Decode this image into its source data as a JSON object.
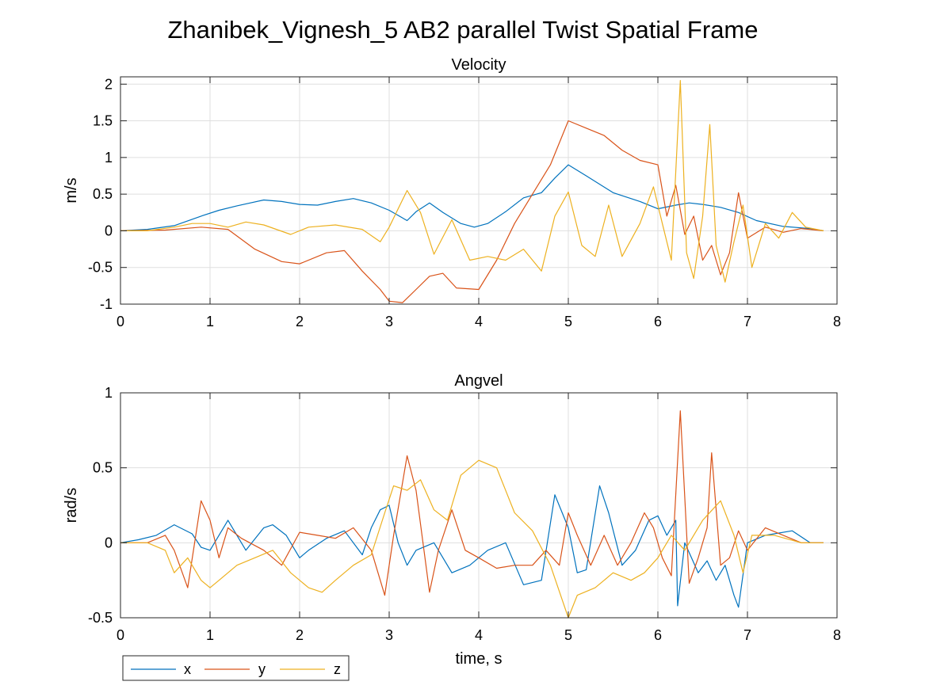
{
  "figure_title": "Zhanibek_Vignesh_5 AB2 parallel Twist Spatial Frame",
  "legend": {
    "placement": "bottom-left",
    "entries": [
      {
        "label": "x",
        "color": "#0072BD"
      },
      {
        "label": "y",
        "color": "#D95319"
      },
      {
        "label": "z",
        "color": "#EDB120"
      }
    ]
  },
  "chart_data": [
    {
      "type": "line",
      "title": "Velocity",
      "xlabel": "",
      "ylabel": "m/s",
      "xlim": [
        0,
        8
      ],
      "ylim": [
        -1,
        2.1
      ],
      "xticks": [
        "0",
        "1",
        "2",
        "3",
        "4",
        "5",
        "6",
        "7",
        "8"
      ],
      "yticks": [
        "-1",
        "-0.5",
        "0",
        "0.5",
        "1",
        "1.5",
        "2"
      ],
      "grid": true,
      "series": [
        {
          "name": "x",
          "color": "#0072BD",
          "x": [
            0,
            0.3,
            0.6,
            0.9,
            1.1,
            1.3,
            1.6,
            1.8,
            2.0,
            2.2,
            2.4,
            2.6,
            2.8,
            3.0,
            3.2,
            3.3,
            3.45,
            3.6,
            3.8,
            3.95,
            4.1,
            4.3,
            4.5,
            4.7,
            4.85,
            5.0,
            5.2,
            5.5,
            5.8,
            6.0,
            6.2,
            6.35,
            6.5,
            6.7,
            6.9,
            7.1,
            7.4,
            7.7,
            7.85
          ],
          "y": [
            0,
            0.02,
            0.07,
            0.2,
            0.28,
            0.34,
            0.42,
            0.4,
            0.36,
            0.35,
            0.4,
            0.44,
            0.38,
            0.28,
            0.14,
            0.26,
            0.38,
            0.25,
            0.1,
            0.05,
            0.1,
            0.26,
            0.45,
            0.52,
            0.72,
            0.9,
            0.75,
            0.52,
            0.4,
            0.3,
            0.35,
            0.38,
            0.36,
            0.32,
            0.25,
            0.14,
            0.06,
            0.03,
            0
          ]
        },
        {
          "name": "y",
          "color": "#D95319",
          "x": [
            0,
            0.5,
            0.9,
            1.2,
            1.5,
            1.8,
            2.0,
            2.3,
            2.5,
            2.7,
            2.9,
            3.0,
            3.15,
            3.3,
            3.45,
            3.6,
            3.75,
            4.0,
            4.2,
            4.4,
            4.6,
            4.8,
            5.0,
            5.2,
            5.4,
            5.6,
            5.8,
            6.0,
            6.1,
            6.2,
            6.3,
            6.4,
            6.5,
            6.6,
            6.7,
            6.8,
            6.9,
            7.0,
            7.2,
            7.4,
            7.6,
            7.85
          ],
          "y": [
            0,
            0.01,
            0.05,
            0.02,
            -0.25,
            -0.42,
            -0.45,
            -0.3,
            -0.27,
            -0.55,
            -0.8,
            -0.96,
            -0.98,
            -0.8,
            -0.62,
            -0.58,
            -0.78,
            -0.8,
            -0.4,
            0.1,
            0.5,
            0.9,
            1.5,
            1.4,
            1.3,
            1.1,
            0.96,
            0.9,
            0.2,
            0.62,
            -0.05,
            0.2,
            -0.4,
            -0.2,
            -0.6,
            -0.3,
            0.52,
            -0.1,
            0.05,
            -0.02,
            0.03,
            0
          ]
        },
        {
          "name": "z",
          "color": "#EDB120",
          "x": [
            0,
            0.3,
            0.6,
            0.8,
            1.0,
            1.2,
            1.4,
            1.6,
            1.9,
            2.1,
            2.4,
            2.7,
            2.9,
            3.0,
            3.2,
            3.35,
            3.5,
            3.7,
            3.9,
            4.1,
            4.3,
            4.5,
            4.7,
            4.85,
            5.0,
            5.15,
            5.3,
            5.45,
            5.6,
            5.8,
            5.95,
            6.05,
            6.15,
            6.25,
            6.32,
            6.4,
            6.5,
            6.58,
            6.65,
            6.75,
            6.85,
            6.95,
            7.05,
            7.2,
            7.35,
            7.5,
            7.65,
            7.85
          ],
          "y": [
            0,
            0.0,
            0.05,
            0.1,
            0.1,
            0.05,
            0.12,
            0.08,
            -0.05,
            0.05,
            0.08,
            0.02,
            -0.15,
            0.05,
            0.55,
            0.25,
            -0.32,
            0.15,
            -0.4,
            -0.35,
            -0.4,
            -0.25,
            -0.55,
            0.2,
            0.53,
            -0.2,
            -0.35,
            0.35,
            -0.35,
            0.1,
            0.6,
            0.1,
            -0.4,
            2.05,
            -0.3,
            -0.65,
            0.2,
            1.45,
            -0.2,
            -0.7,
            -0.15,
            0.35,
            -0.5,
            0.1,
            -0.1,
            0.25,
            0.05,
            0
          ]
        }
      ]
    },
    {
      "type": "line",
      "title": "Angvel",
      "xlabel": "time, s",
      "ylabel": "rad/s",
      "xlim": [
        0,
        8
      ],
      "ylim": [
        -0.5,
        1
      ],
      "xticks": [
        "0",
        "1",
        "2",
        "3",
        "4",
        "5",
        "6",
        "7",
        "8"
      ],
      "yticks": [
        "-0.5",
        "0",
        "0.5",
        "1"
      ],
      "grid": true,
      "series": [
        {
          "name": "x",
          "color": "#0072BD",
          "x": [
            0,
            0.2,
            0.4,
            0.6,
            0.8,
            0.9,
            1.0,
            1.2,
            1.4,
            1.6,
            1.7,
            1.85,
            2.0,
            2.1,
            2.3,
            2.5,
            2.7,
            2.8,
            2.9,
            3.0,
            3.1,
            3.2,
            3.3,
            3.5,
            3.7,
            3.9,
            4.1,
            4.3,
            4.5,
            4.7,
            4.85,
            5.0,
            5.1,
            5.2,
            5.35,
            5.45,
            5.6,
            5.75,
            5.9,
            6.0,
            6.1,
            6.2,
            6.22,
            6.3,
            6.45,
            6.55,
            6.65,
            6.75,
            6.85,
            6.9,
            7.0,
            7.2,
            7.5,
            7.7,
            7.85
          ],
          "y": [
            0,
            0.02,
            0.05,
            0.12,
            0.06,
            -0.03,
            -0.05,
            0.15,
            -0.05,
            0.1,
            0.12,
            0.05,
            -0.1,
            -0.05,
            0.03,
            0.08,
            -0.08,
            0.1,
            0.22,
            0.25,
            0.0,
            -0.15,
            -0.05,
            0.0,
            -0.2,
            -0.15,
            -0.05,
            0.0,
            -0.28,
            -0.25,
            0.32,
            0.1,
            -0.2,
            -0.18,
            0.38,
            0.2,
            -0.15,
            -0.05,
            0.15,
            0.18,
            0.05,
            0.15,
            -0.42,
            0.0,
            -0.2,
            -0.12,
            -0.25,
            -0.15,
            -0.35,
            -0.43,
            0.0,
            0.05,
            0.08,
            0.0,
            0
          ]
        },
        {
          "name": "y",
          "color": "#D95319",
          "x": [
            0,
            0.3,
            0.5,
            0.6,
            0.75,
            0.9,
            1.0,
            1.1,
            1.2,
            1.35,
            1.6,
            1.8,
            2.0,
            2.2,
            2.4,
            2.6,
            2.8,
            2.95,
            3.05,
            3.2,
            3.3,
            3.45,
            3.55,
            3.7,
            3.85,
            4.0,
            4.2,
            4.4,
            4.6,
            4.75,
            4.9,
            5.0,
            5.1,
            5.25,
            5.4,
            5.55,
            5.7,
            5.85,
            5.95,
            6.05,
            6.15,
            6.25,
            6.35,
            6.45,
            6.55,
            6.6,
            6.7,
            6.8,
            6.9,
            7.0,
            7.2,
            7.4,
            7.6,
            7.85
          ],
          "y": [
            0,
            0.0,
            0.05,
            -0.05,
            -0.3,
            0.28,
            0.15,
            -0.1,
            0.1,
            0.03,
            -0.05,
            -0.15,
            0.07,
            0.05,
            0.03,
            0.1,
            -0.05,
            -0.35,
            0.05,
            0.58,
            0.35,
            -0.33,
            -0.05,
            0.22,
            -0.05,
            -0.1,
            -0.17,
            -0.15,
            -0.15,
            -0.05,
            -0.15,
            0.2,
            0.05,
            -0.15,
            0.05,
            -0.15,
            0.0,
            0.2,
            0.1,
            -0.1,
            -0.22,
            0.88,
            -0.27,
            -0.1,
            0.1,
            0.6,
            -0.15,
            -0.1,
            0.08,
            -0.05,
            0.1,
            0.05,
            0.0,
            0
          ]
        },
        {
          "name": "z",
          "color": "#EDB120",
          "x": [
            0,
            0.3,
            0.5,
            0.6,
            0.75,
            0.9,
            1.0,
            1.1,
            1.3,
            1.5,
            1.7,
            1.9,
            2.1,
            2.25,
            2.4,
            2.6,
            2.8,
            2.95,
            3.05,
            3.2,
            3.35,
            3.5,
            3.65,
            3.8,
            4.0,
            4.2,
            4.4,
            4.6,
            4.8,
            5.0,
            5.1,
            5.3,
            5.5,
            5.7,
            5.85,
            6.0,
            6.15,
            6.3,
            6.5,
            6.7,
            6.85,
            6.95,
            7.05,
            7.3,
            7.6,
            7.85
          ],
          "y": [
            0,
            0.0,
            -0.05,
            -0.2,
            -0.1,
            -0.25,
            -0.3,
            -0.25,
            -0.15,
            -0.1,
            -0.05,
            -0.2,
            -0.3,
            -0.33,
            -0.25,
            -0.15,
            -0.08,
            0.2,
            0.38,
            0.35,
            0.42,
            0.22,
            0.15,
            0.45,
            0.55,
            0.5,
            0.2,
            0.08,
            -0.15,
            -0.5,
            -0.35,
            -0.3,
            -0.2,
            -0.25,
            -0.2,
            -0.1,
            0.05,
            -0.05,
            0.15,
            0.28,
            0.05,
            -0.2,
            0.05,
            0.05,
            0.0,
            0
          ]
        }
      ]
    }
  ]
}
